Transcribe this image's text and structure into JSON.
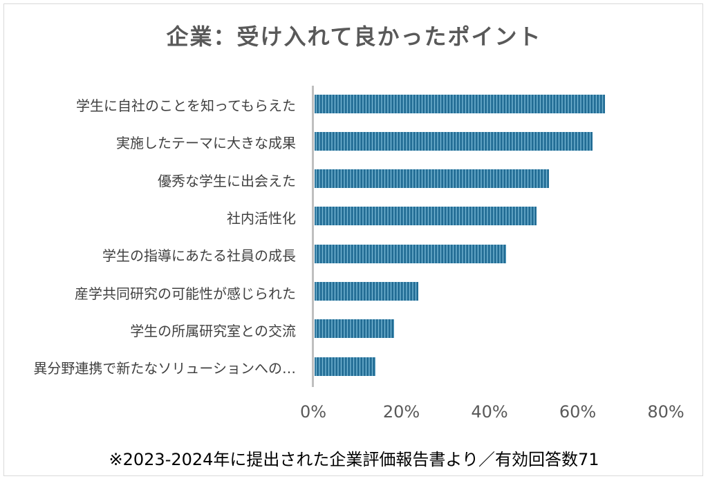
{
  "chart_data": {
    "type": "bar",
    "orientation": "horizontal",
    "title": "企業：受け入れて良かったポイント",
    "categories": [
      "学生に自社のことを知ってもらえた",
      "実施したテーマに大きな成果",
      "優秀な学生に出会えた",
      "社内活性化",
      "学生の指導にあたる社員の成長",
      "産学共同研究の可能性が感じられた",
      "学生の所属研究室との交流",
      "異分野連携で新たなソリューションへの…"
    ],
    "values": [
      66.2,
      63.4,
      53.5,
      50.7,
      43.7,
      23.9,
      18.3,
      14.1
    ],
    "unit": "%",
    "xlim": [
      0,
      80
    ],
    "ticks": [
      "0%",
      "20%",
      "40%",
      "60%",
      "80%"
    ],
    "grid": false,
    "bar_color": "#2a7aa3",
    "footnote": "※2023-2024年に提出された企業評価報告書より／有効回答数71"
  }
}
